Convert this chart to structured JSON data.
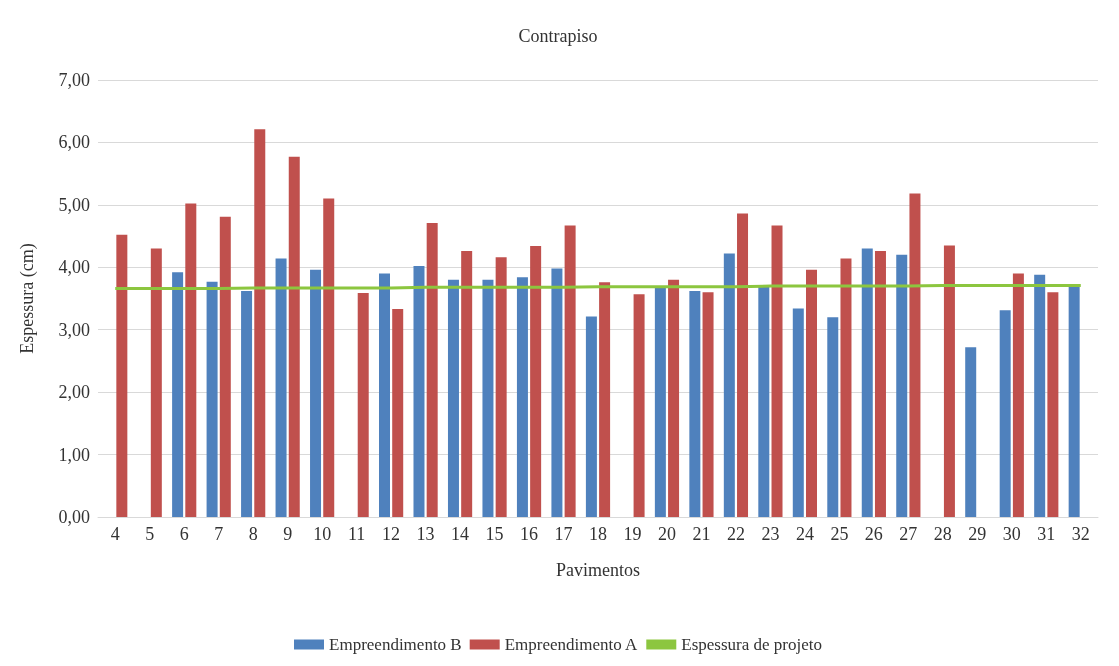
{
  "chart_data": {
    "type": "bar",
    "title": "Contrapiso",
    "xlabel": "Pavimentos",
    "ylabel": "Espessura (cm)",
    "categories": [
      "4",
      "5",
      "6",
      "7",
      "8",
      "9",
      "10",
      "11",
      "12",
      "13",
      "14",
      "15",
      "16",
      "17",
      "18",
      "19",
      "20",
      "21",
      "22",
      "23",
      "24",
      "25",
      "26",
      "27",
      "28",
      "29",
      "30",
      "31",
      "32"
    ],
    "series": [
      {
        "name": "Empreendimento B",
        "color": "#4f81bd",
        "values": [
          null,
          null,
          3.92,
          3.77,
          3.62,
          4.14,
          3.96,
          null,
          3.9,
          4.02,
          3.8,
          3.8,
          3.84,
          3.98,
          3.21,
          null,
          3.7,
          3.62,
          4.22,
          3.7,
          3.34,
          3.2,
          4.3,
          4.2,
          null,
          2.72,
          3.31,
          3.88,
          3.7
        ]
      },
      {
        "name": "Empreendimento A",
        "color": "#c0504d",
        "values": [
          4.52,
          4.3,
          5.02,
          4.81,
          6.21,
          5.77,
          5.1,
          3.59,
          3.33,
          4.71,
          4.26,
          4.16,
          4.34,
          4.67,
          3.76,
          3.57,
          3.8,
          3.6,
          4.86,
          4.67,
          3.96,
          4.14,
          4.26,
          5.18,
          4.35,
          null,
          3.9,
          3.6,
          null
        ]
      },
      {
        "name": "Espessura de projeto",
        "type": "line",
        "color": "#8cc63f",
        "values": [
          3.66,
          3.66,
          3.66,
          3.66,
          3.67,
          3.67,
          3.67,
          3.67,
          3.67,
          3.68,
          3.68,
          3.68,
          3.68,
          3.68,
          3.69,
          3.69,
          3.69,
          3.69,
          3.69,
          3.7,
          3.7,
          3.7,
          3.7,
          3.7,
          3.71,
          3.71,
          3.71,
          3.71,
          3.71
        ]
      }
    ],
    "ylim": [
      0,
      7
    ],
    "yticks": [
      {
        "value": 0,
        "label": "0,00"
      },
      {
        "value": 1,
        "label": "1,00"
      },
      {
        "value": 2,
        "label": "2,00"
      },
      {
        "value": 3,
        "label": "3,00"
      },
      {
        "value": 4,
        "label": "4,00"
      },
      {
        "value": 5,
        "label": "5,00"
      },
      {
        "value": 6,
        "label": "6,00"
      },
      {
        "value": 7,
        "label": "7,00"
      }
    ],
    "grid": "y",
    "legend": "bottom",
    "marker": "none"
  }
}
